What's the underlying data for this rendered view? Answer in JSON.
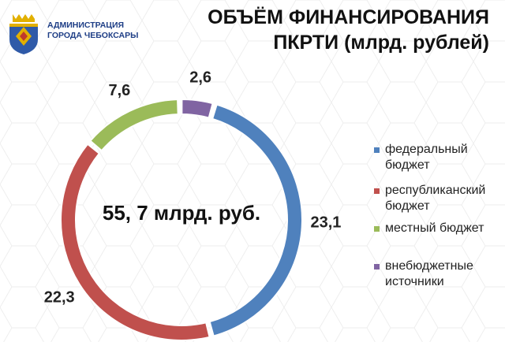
{
  "header": {
    "org_line1": "АДМИНИСТРАЦИЯ",
    "org_line2": "ГОРОДА ЧЕБОКСАРЫ",
    "title_line1": "ОБЪЁМ ФИНАНСИРОВАНИЯ",
    "title_line2": "ПКРТИ (млрд. рублей)"
  },
  "chart_data": {
    "type": "pie",
    "variant": "donut",
    "center_label": "55, 7 млрд. руб.",
    "legend_position": "right",
    "slices": [
      {
        "label": "федеральный бюджет",
        "legend_lines": [
          "федеральный",
          "бюджет"
        ],
        "value": 23.1,
        "value_label": "23,1",
        "color": "#4f81bd"
      },
      {
        "label": "республиканский бюджет",
        "legend_lines": [
          "республиканский",
          "бюджет"
        ],
        "value": 22.3,
        "value_label": "22,3",
        "color": "#c0504d"
      },
      {
        "label": "местный бюджет",
        "legend_lines": [
          "местный бюджет"
        ],
        "value": 7.6,
        "value_label": "7,6",
        "color": "#9bbb59"
      },
      {
        "label": "внебюджетные источники",
        "legend_lines": [
          "внебюджетные",
          "источники"
        ],
        "value": 2.6,
        "value_label": "2,6",
        "color": "#8064a2"
      }
    ]
  }
}
